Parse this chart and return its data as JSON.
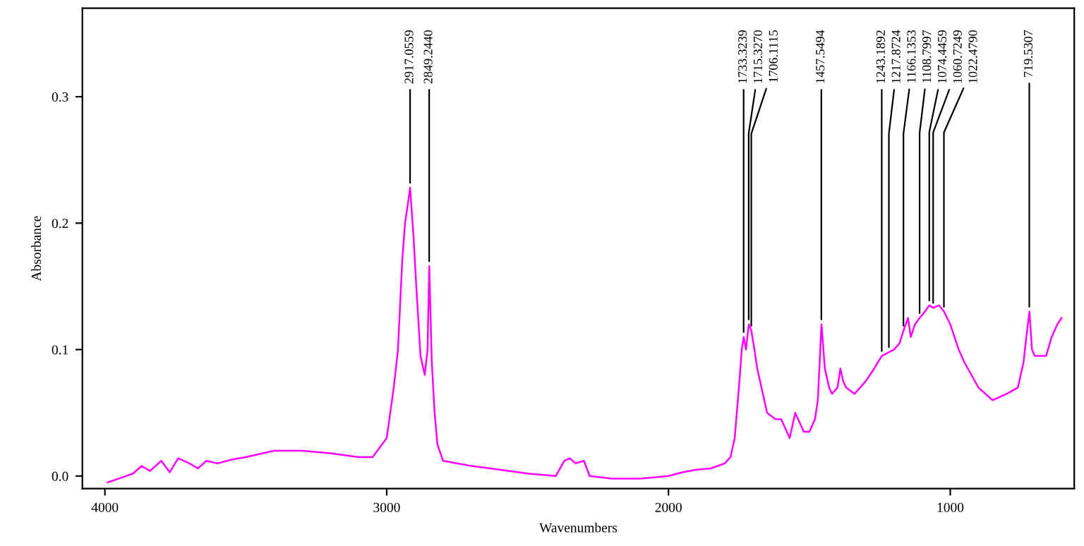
{
  "chart_data": {
    "type": "line",
    "xlabel": "Wavenumbers",
    "ylabel": "Absorbance",
    "x": [
      3990,
      3950,
      3900,
      3870,
      3840,
      3800,
      3770,
      3740,
      3700,
      3670,
      3640,
      3600,
      3550,
      3500,
      3400,
      3300,
      3200,
      3100,
      3050,
      3000,
      2975,
      2960,
      2945,
      2935,
      2925,
      2917,
      2905,
      2895,
      2880,
      2865,
      2855,
      2849,
      2840,
      2830,
      2820,
      2800,
      2700,
      2600,
      2500,
      2400,
      2370,
      2350,
      2330,
      2300,
      2280,
      2200,
      2100,
      2000,
      1950,
      1900,
      1850,
      1800,
      1780,
      1765,
      1750,
      1740,
      1733,
      1725,
      1715,
      1706,
      1695,
      1685,
      1670,
      1650,
      1620,
      1600,
      1570,
      1550,
      1520,
      1500,
      1480,
      1470,
      1457,
      1445,
      1430,
      1420,
      1400,
      1390,
      1380,
      1370,
      1340,
      1300,
      1270,
      1243,
      1217,
      1200,
      1180,
      1166,
      1150,
      1140,
      1125,
      1109,
      1090,
      1074,
      1060,
      1040,
      1022,
      1000,
      970,
      950,
      900,
      850,
      800,
      760,
      740,
      730,
      719,
      710,
      700,
      690,
      660,
      640,
      620,
      605
    ],
    "series": [
      {
        "color": "#ff00ff",
        "values": [
          -0.005,
          -0.002,
          0.002,
          0.008,
          0.004,
          0.012,
          0.003,
          0.014,
          0.01,
          0.006,
          0.012,
          0.01,
          0.013,
          0.015,
          0.02,
          0.02,
          0.018,
          0.015,
          0.015,
          0.03,
          0.07,
          0.1,
          0.17,
          0.2,
          0.215,
          0.228,
          0.19,
          0.15,
          0.095,
          0.08,
          0.1,
          0.166,
          0.09,
          0.05,
          0.025,
          0.012,
          0.008,
          0.005,
          0.002,
          0.0,
          0.012,
          0.014,
          0.01,
          0.012,
          0.0,
          -0.002,
          -0.002,
          0.0,
          0.003,
          0.005,
          0.006,
          0.01,
          0.015,
          0.03,
          0.07,
          0.1,
          0.11,
          0.1,
          0.12,
          0.115,
          0.1,
          0.085,
          0.07,
          0.05,
          0.045,
          0.045,
          0.03,
          0.05,
          0.035,
          0.035,
          0.045,
          0.06,
          0.12,
          0.085,
          0.07,
          0.065,
          0.07,
          0.085,
          0.075,
          0.07,
          0.065,
          0.075,
          0.085,
          0.095,
          0.098,
          0.1,
          0.105,
          0.115,
          0.125,
          0.11,
          0.12,
          0.125,
          0.13,
          0.135,
          0.133,
          0.135,
          0.13,
          0.12,
          0.1,
          0.09,
          0.07,
          0.06,
          0.065,
          0.07,
          0.09,
          0.11,
          0.13,
          0.1,
          0.095,
          0.095,
          0.095,
          0.11,
          0.12,
          0.125
        ]
      }
    ],
    "xlim": [
      4080,
      560
    ],
    "ylim": [
      -0.01,
      0.37
    ],
    "xticks": [
      4000,
      3000,
      2000,
      1000
    ],
    "yticks": [
      {
        "value": 0.0,
        "label": "0.0"
      },
      {
        "value": 0.1,
        "label": "0.1"
      },
      {
        "value": 0.2,
        "label": "0.2"
      },
      {
        "value": 0.3,
        "label": "0.3"
      }
    ],
    "grid": false,
    "legend": false,
    "annotations": [
      {
        "text": "2917.0559",
        "x": 2917.0559,
        "y": 0.228
      },
      {
        "text": "2849.2440",
        "x": 2849.244,
        "y": 0.166
      },
      {
        "text": "1733.3239",
        "x": 1733.3239,
        "y": 0.11
      },
      {
        "text": "1715.3270",
        "x": 1715.327,
        "y": 0.12
      },
      {
        "text": "1706.1115",
        "x": 1706.1115,
        "y": 0.115
      },
      {
        "text": "1457.5494",
        "x": 1457.5494,
        "y": 0.12
      },
      {
        "text": "1243.1892",
        "x": 1243.1892,
        "y": 0.095
      },
      {
        "text": "1217.8724",
        "x": 1217.8724,
        "y": 0.098
      },
      {
        "text": "1166.1353",
        "x": 1166.1353,
        "y": 0.115
      },
      {
        "text": "1108.7997",
        "x": 1108.7997,
        "y": 0.125
      },
      {
        "text": "1074.4459",
        "x": 1074.4459,
        "y": 0.135
      },
      {
        "text": "1060.7249",
        "x": 1060.7249,
        "y": 0.133
      },
      {
        "text": "1022.4790",
        "x": 1022.479,
        "y": 0.13
      },
      {
        "text": "719.5307",
        "x": 719.5307,
        "y": 0.13
      }
    ]
  }
}
